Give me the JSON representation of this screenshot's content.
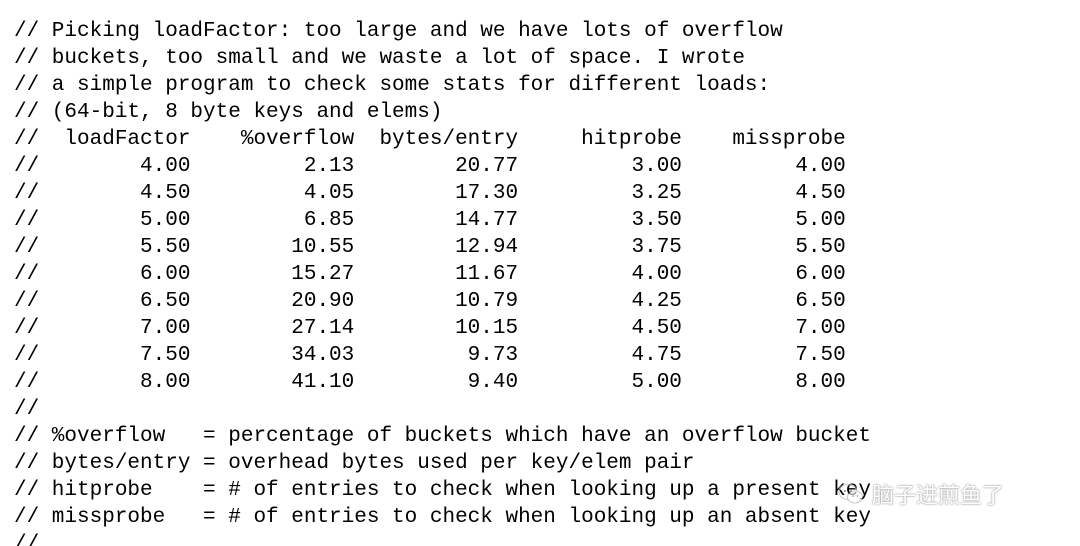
{
  "code": {
    "lines": [
      "// Picking loadFactor: too large and we have lots of overflow",
      "// buckets, too small and we waste a lot of space. I wrote",
      "// a simple program to check some stats for different loads:",
      "// (64-bit, 8 byte keys and elems)",
      "//  loadFactor    %overflow  bytes/entry     hitprobe    missprobe",
      "//        4.00         2.13        20.77         3.00         4.00",
      "//        4.50         4.05        17.30         3.25         4.50",
      "//        5.00         6.85        14.77         3.50         5.00",
      "//        5.50        10.55        12.94         3.75         5.50",
      "//        6.00        15.27        11.67         4.00         6.00",
      "//        6.50        20.90        10.79         4.25         6.50",
      "//        7.00        27.14        10.15         4.50         7.00",
      "//        7.50        34.03         9.73         4.75         7.50",
      "//        8.00        41.10         9.40         5.00         8.00",
      "//",
      "// %overflow   = percentage of buckets which have an overflow bucket",
      "// bytes/entry = overhead bytes used per key/elem pair",
      "// hitprobe    = # of entries to check when looking up a present key",
      "// missprobe   = # of entries to check when looking up an absent key",
      "//"
    ]
  },
  "watermark": {
    "text": "脑子进煎鱼了",
    "icon": "wechat-icon"
  }
}
